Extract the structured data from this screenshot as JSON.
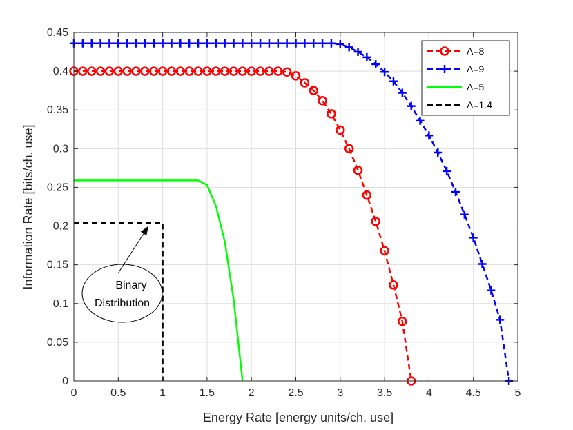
{
  "chart_data": {
    "type": "line",
    "title": "",
    "xlabel": "Energy Rate [energy units/ch. use]",
    "ylabel": "Information Rate [bits/ch. use]",
    "xlim": [
      0,
      5
    ],
    "ylim": [
      0,
      0.45
    ],
    "xticks": [
      0,
      0.5,
      1,
      1.5,
      2,
      2.5,
      3,
      3.5,
      4,
      4.5,
      5
    ],
    "yticks": [
      0,
      0.05,
      0.1,
      0.15,
      0.2,
      0.25,
      0.3,
      0.35,
      0.4,
      0.45
    ],
    "xtick_labels": [
      "0",
      "0.5",
      "1",
      "1.5",
      "2",
      "2.5",
      "3",
      "3.5",
      "4",
      "4.5",
      "5"
    ],
    "ytick_labels": [
      "0",
      "0.05",
      "0.1",
      "0.15",
      "0.2",
      "0.25",
      "0.3",
      "0.35",
      "0.4",
      "0.45"
    ],
    "grid": true,
    "legend_position": "top-right",
    "series": [
      {
        "name": "A=8",
        "color": "#ff0000",
        "line_style": "dashed",
        "marker": "circle",
        "x": [
          0,
          0.1,
          0.2,
          0.3,
          0.4,
          0.5,
          0.6,
          0.7,
          0.8,
          0.9,
          1.0,
          1.1,
          1.2,
          1.3,
          1.4,
          1.5,
          1.6,
          1.7,
          1.8,
          1.9,
          2.0,
          2.1,
          2.2,
          2.3,
          2.4,
          2.5,
          2.6,
          2.7,
          2.8,
          2.9,
          3.0,
          3.1,
          3.2,
          3.3,
          3.4,
          3.5,
          3.6,
          3.7,
          3.8
        ],
        "y": [
          0.4,
          0.4,
          0.4,
          0.4,
          0.4,
          0.4,
          0.4,
          0.4,
          0.4,
          0.4,
          0.4,
          0.4,
          0.4,
          0.4,
          0.4,
          0.4,
          0.4,
          0.4,
          0.4,
          0.4,
          0.4,
          0.4,
          0.4,
          0.4,
          0.399,
          0.394,
          0.385,
          0.375,
          0.362,
          0.345,
          0.324,
          0.3,
          0.272,
          0.24,
          0.206,
          0.168,
          0.124,
          0.077,
          0.0
        ]
      },
      {
        "name": "A=9",
        "color": "#0000ff",
        "line_style": "dashed",
        "marker": "plus",
        "x": [
          0,
          0.1,
          0.2,
          0.3,
          0.4,
          0.5,
          0.6,
          0.7,
          0.8,
          0.9,
          1.0,
          1.1,
          1.2,
          1.3,
          1.4,
          1.5,
          1.6,
          1.7,
          1.8,
          1.9,
          2.0,
          2.1,
          2.2,
          2.3,
          2.4,
          2.5,
          2.6,
          2.7,
          2.8,
          2.9,
          3.0,
          3.1,
          3.2,
          3.3,
          3.4,
          3.5,
          3.6,
          3.7,
          3.8,
          3.9,
          4.0,
          4.1,
          4.2,
          4.3,
          4.4,
          4.5,
          4.6,
          4.7,
          4.8,
          4.9
        ],
        "y": [
          0.436,
          0.436,
          0.436,
          0.436,
          0.436,
          0.436,
          0.436,
          0.436,
          0.436,
          0.436,
          0.436,
          0.436,
          0.436,
          0.436,
          0.436,
          0.436,
          0.436,
          0.436,
          0.436,
          0.436,
          0.436,
          0.436,
          0.436,
          0.436,
          0.436,
          0.436,
          0.436,
          0.436,
          0.436,
          0.436,
          0.435,
          0.431,
          0.425,
          0.418,
          0.409,
          0.399,
          0.387,
          0.372,
          0.355,
          0.336,
          0.317,
          0.295,
          0.271,
          0.244,
          0.215,
          0.185,
          0.151,
          0.117,
          0.079,
          0.0
        ]
      },
      {
        "name": "A=5",
        "color": "#00ff00",
        "line_style": "solid",
        "marker": "none",
        "x": [
          0,
          1.4,
          1.5,
          1.6,
          1.7,
          1.8,
          1.9
        ],
        "y": [
          0.259,
          0.259,
          0.253,
          0.226,
          0.18,
          0.105,
          0.0
        ]
      },
      {
        "name": "A=1.4",
        "color": "#000000",
        "line_style": "dashed",
        "marker": "none",
        "x": [
          0,
          1.0,
          1.0
        ],
        "y": [
          0.204,
          0.204,
          0.0
        ]
      }
    ],
    "annotations": [
      {
        "text_lines": [
          "Binary",
          "Distribution"
        ],
        "arrow_target": [
          0.84,
          0.2
        ]
      }
    ]
  }
}
